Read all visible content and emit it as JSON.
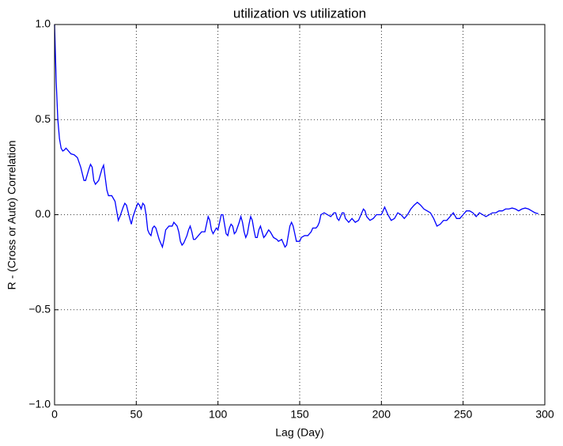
{
  "chart_data": {
    "type": "line",
    "title": "utilization vs utilization",
    "xlabel": "Lag (Day)",
    "ylabel": "R - (Cross or Auto) Correlation",
    "xlim": [
      0,
      300
    ],
    "ylim": [
      -1.0,
      1.0
    ],
    "xticks": [
      0,
      50,
      100,
      150,
      200,
      250,
      300
    ],
    "yticks": [
      {
        "value": -1.0,
        "label": "−1.0"
      },
      {
        "value": -0.5,
        "label": "−0.5"
      },
      {
        "value": 0,
        "label": "0.0"
      },
      {
        "value": 0.5,
        "label": "0.5"
      },
      {
        "value": 1.0,
        "label": "1.0"
      }
    ],
    "grid": true,
    "x": [
      0,
      1,
      2,
      3,
      4,
      5,
      6,
      7,
      8,
      10,
      12,
      14,
      16,
      18,
      19,
      21,
      22,
      23,
      24,
      25,
      27,
      29,
      30,
      32,
      33,
      35,
      37,
      38,
      39,
      40,
      42,
      43,
      44,
      46,
      47,
      48,
      50,
      51,
      52,
      53,
      54,
      55,
      56,
      57,
      58,
      59,
      60,
      61,
      62,
      64,
      65,
      66,
      67,
      68,
      70,
      72,
      73,
      75,
      76,
      77,
      78,
      79,
      81,
      82,
      83,
      84,
      85,
      86,
      88,
      90,
      92,
      93,
      94,
      95,
      96,
      97,
      99,
      100,
      101,
      102,
      103,
      104,
      105,
      106,
      107,
      108,
      109,
      110,
      111,
      113,
      114,
      115,
      116,
      117,
      118,
      119,
      120,
      121,
      122,
      123,
      124,
      125,
      126,
      127,
      128,
      129,
      131,
      132,
      134,
      136,
      137,
      139,
      140,
      141,
      142,
      143,
      144,
      145,
      146,
      147,
      148,
      150,
      151,
      153,
      155,
      157,
      158,
      160,
      161,
      162,
      163,
      165,
      167,
      169,
      171,
      172,
      173,
      174,
      175,
      176,
      177,
      178,
      180,
      181,
      182,
      184,
      186,
      188,
      189,
      190,
      191,
      193,
      195,
      197,
      200,
      202,
      204,
      206,
      208,
      210,
      212,
      214,
      216,
      218,
      220,
      222,
      224,
      226,
      228,
      230,
      232,
      234,
      236,
      238,
      240,
      242,
      244,
      246,
      248,
      250,
      252,
      254,
      256,
      258,
      260,
      262,
      264,
      266,
      268,
      270,
      272,
      274,
      276,
      278,
      280,
      282,
      284,
      286,
      288,
      290,
      292,
      294,
      296
    ],
    "series": [
      {
        "name": "utilization",
        "color": "#0000ff",
        "values": [
          1.0,
          0.7,
          0.5,
          0.4,
          0.35,
          0.335,
          0.34,
          0.35,
          0.34,
          0.32,
          0.315,
          0.3,
          0.25,
          0.18,
          0.18,
          0.24,
          0.265,
          0.25,
          0.18,
          0.16,
          0.18,
          0.24,
          0.26,
          0.13,
          0.1,
          0.1,
          0.07,
          0.02,
          -0.03,
          -0.01,
          0.04,
          0.06,
          0.05,
          -0.02,
          -0.05,
          -0.01,
          0.04,
          0.06,
          0.05,
          0.03,
          0.06,
          0.05,
          0.0,
          -0.08,
          -0.1,
          -0.11,
          -0.07,
          -0.06,
          -0.07,
          -0.13,
          -0.15,
          -0.17,
          -0.13,
          -0.08,
          -0.06,
          -0.06,
          -0.04,
          -0.06,
          -0.09,
          -0.14,
          -0.16,
          -0.15,
          -0.11,
          -0.08,
          -0.06,
          -0.09,
          -0.13,
          -0.13,
          -0.11,
          -0.09,
          -0.09,
          -0.05,
          -0.01,
          -0.03,
          -0.08,
          -0.1,
          -0.07,
          -0.08,
          -0.04,
          0.0,
          0.0,
          -0.05,
          -0.1,
          -0.11,
          -0.07,
          -0.05,
          -0.06,
          -0.1,
          -0.09,
          -0.04,
          -0.01,
          -0.04,
          -0.09,
          -0.12,
          -0.1,
          -0.05,
          -0.01,
          -0.03,
          -0.08,
          -0.12,
          -0.12,
          -0.08,
          -0.06,
          -0.09,
          -0.12,
          -0.11,
          -0.08,
          -0.09,
          -0.12,
          -0.13,
          -0.14,
          -0.13,
          -0.15,
          -0.17,
          -0.16,
          -0.11,
          -0.06,
          -0.04,
          -0.06,
          -0.1,
          -0.14,
          -0.14,
          -0.12,
          -0.11,
          -0.11,
          -0.09,
          -0.07,
          -0.07,
          -0.06,
          -0.04,
          0.0,
          0.01,
          0.0,
          -0.01,
          0.01,
          0.01,
          -0.02,
          -0.03,
          -0.01,
          0.01,
          0.01,
          -0.02,
          -0.04,
          -0.03,
          -0.02,
          -0.04,
          -0.03,
          0.01,
          0.03,
          0.02,
          -0.01,
          -0.03,
          -0.02,
          0.0,
          0.0,
          0.04,
          0.0,
          -0.03,
          -0.02,
          0.01,
          0.0,
          -0.02,
          0.0,
          0.03,
          0.05,
          0.065,
          0.05,
          0.03,
          0.02,
          0.01,
          -0.02,
          -0.06,
          -0.05,
          -0.03,
          -0.03,
          -0.01,
          0.01,
          -0.02,
          -0.02,
          0.0,
          0.02,
          0.02,
          0.01,
          -0.01,
          0.01,
          0.0,
          -0.01,
          0.0,
          0.01,
          0.01,
          0.02,
          0.02,
          0.03,
          0.03,
          0.035,
          0.03,
          0.02,
          0.03,
          0.035,
          0.03,
          0.02,
          0.01,
          0.005
        ]
      }
    ]
  }
}
